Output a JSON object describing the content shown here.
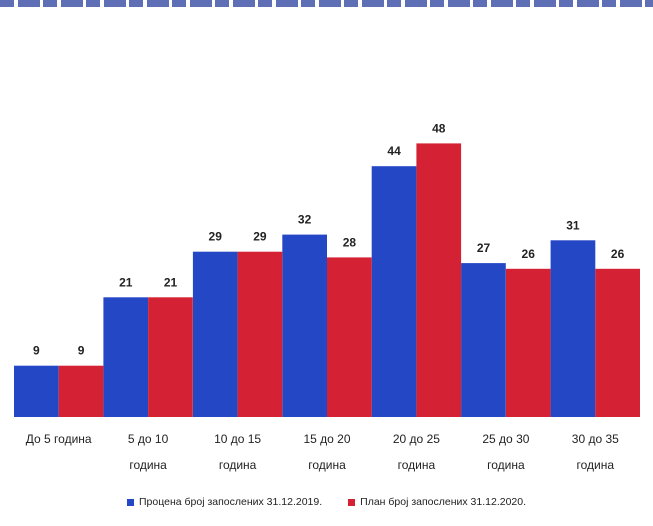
{
  "chart_data": {
    "type": "bar",
    "categories": [
      [
        "До 5 година"
      ],
      [
        "5 до 10",
        "година"
      ],
      [
        "10 до 15",
        "година"
      ],
      [
        "15 до 20",
        "година"
      ],
      [
        "20 до 25",
        "година"
      ],
      [
        "25 до 30",
        "година"
      ],
      [
        "30 до 35",
        "година"
      ]
    ],
    "series": [
      {
        "name": "Процена број запослених 31.12.2019.",
        "color": "#2447c6",
        "values": [
          9,
          21,
          29,
          32,
          44,
          27,
          31
        ]
      },
      {
        "name": "План број запослених 31.12.2020.",
        "color": "#d42234",
        "values": [
          9,
          21,
          29,
          28,
          48,
          26,
          26
        ]
      }
    ],
    "ylim": [
      0,
      55
    ],
    "grid": false,
    "legend_position": "bottom"
  }
}
